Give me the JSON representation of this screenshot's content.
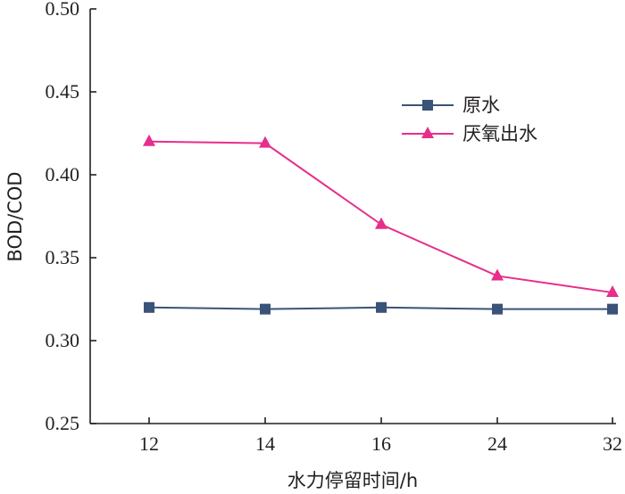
{
  "chart_data": {
    "type": "line",
    "title": "",
    "xlabel": "水力停留时间/h",
    "ylabel": "BOD/COD",
    "categories": [
      "12",
      "14",
      "16",
      "24",
      "32"
    ],
    "ylim": [
      0.25,
      0.5
    ],
    "yticks": [
      "0.25",
      "0.30",
      "0.35",
      "0.40",
      "0.45",
      "0.50"
    ],
    "grid": false,
    "legend_position": "upper-right",
    "series": [
      {
        "name": "原水",
        "marker": "square",
        "color": "#3a5378",
        "values": [
          0.32,
          0.319,
          0.32,
          0.319,
          0.319
        ]
      },
      {
        "name": "厌氧出水",
        "marker": "triangle",
        "color": "#e62e8b",
        "values": [
          0.42,
          0.419,
          0.37,
          0.339,
          0.329
        ]
      }
    ]
  }
}
